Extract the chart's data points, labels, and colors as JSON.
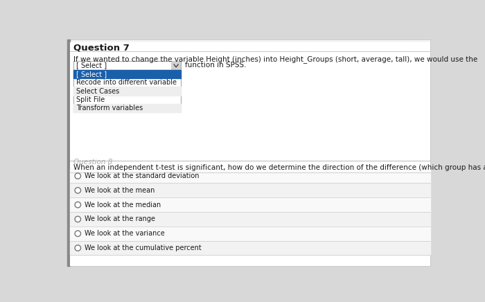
{
  "title": "Question 7",
  "bg_color": "#d8d8d8",
  "content_bg": "#f5f5f5",
  "white_bg": "#ffffff",
  "question1_text": "If we wanted to change the variable Height (inches) into Height_Groups (short, average, tall), we would use the",
  "dropdown_label": "[ Select ]",
  "dropdown_suffix": "function in SPSS.",
  "dropdown_items": [
    "[ Select ]",
    "Recode into different variable",
    "Select Cases",
    "Split File",
    "Transform variables"
  ],
  "dropdown_highlight": "#1a5faa",
  "question2_text": "When an independent t-test is significant, how do we determine the direction of the difference (which group has a higher score)?",
  "radio_options": [
    "We look at the standard deviation",
    "We look at the mean",
    "We look at the median",
    "We look at the range",
    "We look at the variance",
    "We look at the cumulative percent"
  ],
  "font_size_title": 9.5,
  "font_size_body": 7.5,
  "font_size_small": 7.0,
  "text_color": "#1a1a1a",
  "border_color": "#c0c0c0",
  "stripe_color": "#eeeeee",
  "left_border_color": "#888888",
  "question8_color": "#aaaaaa"
}
